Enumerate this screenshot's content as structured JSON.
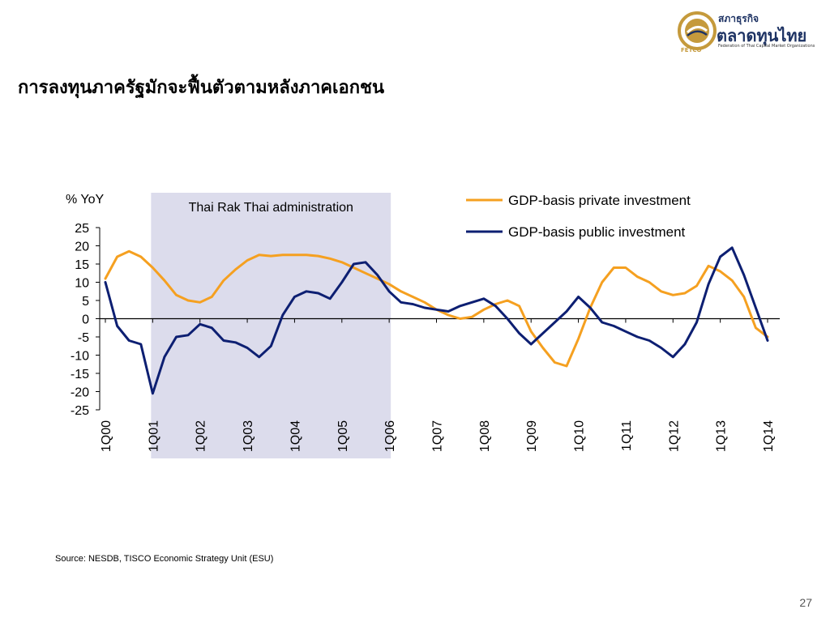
{
  "title": "การลงทุนภาครัฐมักจะฟื้นตัวตามหลังภาคเอกชน",
  "logo": {
    "line1": "สภาธุรกิจ",
    "line2": "ตลาดทุนไทย",
    "line3": "Federation of Thai Capital Market Organizations",
    "abbr": "FETCO",
    "colors": {
      "gold": "#c59a3c",
      "navy": "#1d3263"
    }
  },
  "chart_data": {
    "type": "line",
    "ylabel": "% YoY",
    "ylim": [
      -25,
      25
    ],
    "y_ticks": [
      "25",
      "20",
      "15",
      "10",
      "5",
      "0",
      "-5",
      "-10",
      "-15",
      "-20",
      "-25"
    ],
    "x_tick_labels": [
      "1Q00",
      "1Q01",
      "1Q02",
      "1Q03",
      "1Q04",
      "1Q05",
      "1Q06",
      "1Q07",
      "1Q08",
      "1Q09",
      "1Q10",
      "1Q11",
      "1Q12",
      "1Q13",
      "1Q14"
    ],
    "shaded_region": {
      "label": "Thai Rak Thai administration",
      "from": "1Q01",
      "to": "1Q06",
      "color": "#dcdcec"
    },
    "legend": {
      "placement": "top-right"
    },
    "series": [
      {
        "name": "GDP-basis private investment",
        "color": "#f5a020",
        "values": [
          11,
          17,
          18.5,
          17,
          14,
          10.5,
          6.5,
          5,
          4.5,
          6,
          10.5,
          13.5,
          16,
          17.5,
          17.2,
          17.5,
          17.5,
          17.5,
          17.2,
          16.5,
          15.5,
          14,
          12.5,
          11,
          9.5,
          7.5,
          6,
          4.5,
          2.5,
          1,
          0,
          0.5,
          2.5,
          4,
          5,
          3.5,
          -3.5,
          -8,
          -12,
          -13,
          -5.5,
          3,
          10,
          14,
          14,
          11.5,
          10,
          7.5,
          6.5,
          7,
          9,
          14.5,
          13,
          10.5,
          6,
          -2.5,
          -5
        ]
      },
      {
        "name": "GDP-basis public investment",
        "color": "#0d1f72",
        "values": [
          10,
          -2,
          -6,
          -7,
          -20.5,
          -10.5,
          -5,
          -4.5,
          -1.5,
          -2.5,
          -6,
          -6.5,
          -8,
          -10.5,
          -7.5,
          1,
          6,
          7.5,
          7,
          5.5,
          10,
          15,
          15.5,
          12,
          7.5,
          4.5,
          4,
          3,
          2.5,
          2,
          3.5,
          4.5,
          5.5,
          3.5,
          0,
          -4,
          -7,
          -4,
          -1,
          2,
          6,
          3,
          -1,
          -2,
          -3.5,
          -5,
          -6,
          -8,
          -10.5,
          -7,
          -1,
          9.5,
          17,
          19.5,
          12,
          3,
          -6
        ]
      }
    ]
  },
  "source": "Source: NESDB, TISCO Economic Strategy Unit (ESU)",
  "page_number": "27"
}
